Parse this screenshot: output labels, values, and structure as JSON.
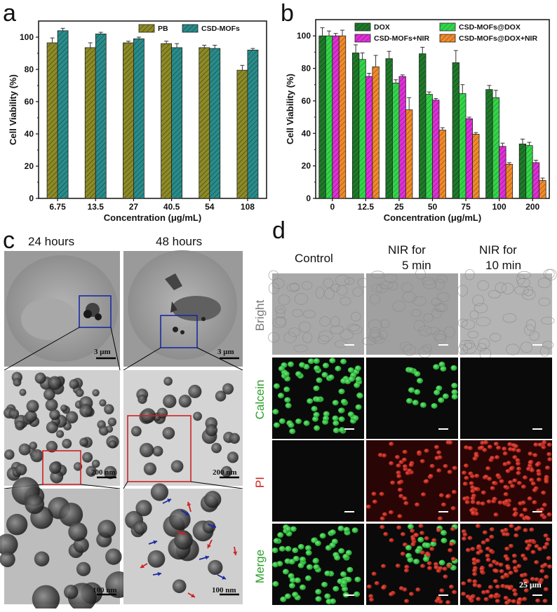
{
  "colors": {
    "pb": "#8d8b26",
    "csd_mofs": "#2a8c8a",
    "dox": "#1f7a2a",
    "csd_mofs_dox": "#34d64a",
    "csd_mofs_nir": "#e030d8",
    "csd_mofs_dox_nir": "#f08a2a"
  },
  "panel_c": {
    "label": "c",
    "col1": "24 hours",
    "col2": "48 hours",
    "scale_top": "3 μm",
    "scale_mid": "200 nm",
    "scale_bot": "100 nm"
  },
  "panel_d": {
    "label": "d",
    "col1": "Control",
    "col2a": "NIR for",
    "col2b": "5 min",
    "col3a": "NIR for",
    "col3b": "10 min",
    "rows": [
      "Bright",
      "Calcein",
      "PI",
      "Merge"
    ],
    "scale": "25 μm"
  },
  "chart_data": [
    {
      "panel": "a",
      "type": "bar",
      "categories": [
        "6.75",
        "13.5",
        "27",
        "40.5",
        "54",
        "108"
      ],
      "series": [
        {
          "name": "PB",
          "values": [
            96.5,
            93.5,
            96.5,
            96,
            93.5,
            79.5
          ],
          "errors": [
            3,
            3,
            1,
            1.5,
            1.5,
            3
          ]
        },
        {
          "name": "CSD-MOFs",
          "values": [
            104,
            102,
            99,
            93.5,
            93,
            92
          ],
          "errors": [
            1.5,
            1,
            1,
            2.5,
            2,
            1
          ]
        }
      ],
      "xlabel": "Concentration (μg/mL)",
      "ylabel": "Cell Viability (%)",
      "ylim": [
        0,
        110
      ],
      "yticks": [
        "0",
        "20",
        "40",
        "60",
        "80",
        "100"
      ],
      "legend_placement": "top-right"
    },
    {
      "panel": "b",
      "type": "bar",
      "categories": [
        "0",
        "12.5",
        "25",
        "50",
        "75",
        "100",
        "200"
      ],
      "series": [
        {
          "name": "DOX",
          "values": [
            100,
            89.5,
            86,
            89,
            83.5,
            67,
            33.5
          ],
          "errors": [
            5,
            5,
            4.5,
            4,
            7.5,
            2.5,
            3
          ]
        },
        {
          "name": "CSD-MOFs@DOX",
          "values": [
            100,
            85.5,
            71,
            64,
            64.5,
            62,
            32.5
          ],
          "errors": [
            3,
            4,
            2,
            1.5,
            5.5,
            4.5,
            2
          ]
        },
        {
          "name": "CSD-MOFs+NIR",
          "values": [
            100,
            75,
            75,
            60.5,
            49,
            32,
            22
          ],
          "errors": [
            1.5,
            2,
            1,
            1,
            1,
            2,
            1.5
          ]
        },
        {
          "name": "CSD-MOFs@DOX+NIR",
          "values": [
            100,
            81,
            54.5,
            42,
            39.5,
            21,
            11
          ],
          "errors": [
            3.5,
            7,
            7.5,
            1.5,
            1,
            1,
            1.5
          ]
        }
      ],
      "xlabel": "Concentration (μg/mL)",
      "ylabel": "Cell Viability (%)",
      "ylim": [
        0,
        110
      ],
      "yticks": [
        "0",
        "20",
        "40",
        "60",
        "80",
        "100"
      ],
      "legend_placement": "top"
    }
  ]
}
